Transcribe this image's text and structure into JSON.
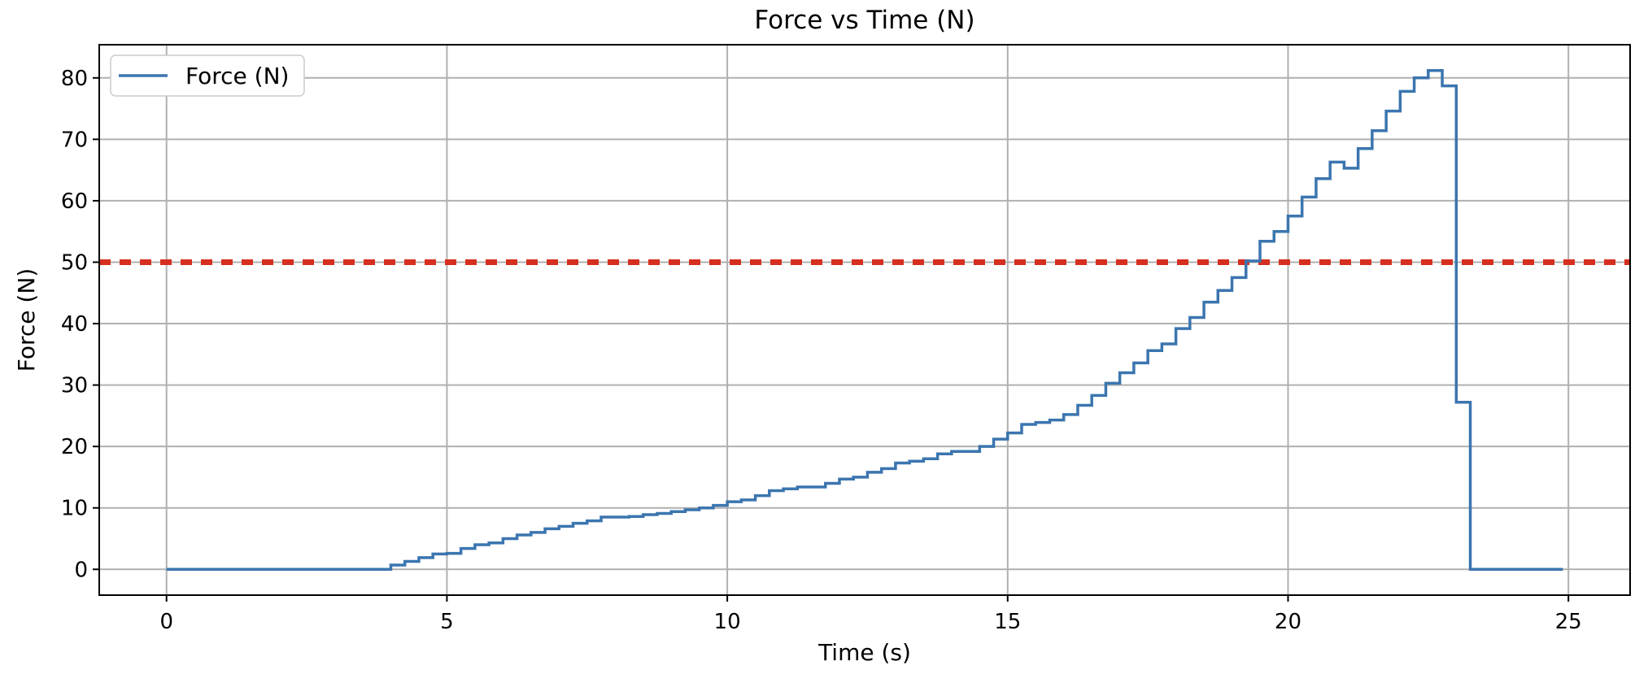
{
  "chart_data": {
    "type": "line",
    "title": "Force vs Time (N)",
    "xlabel": "Time (s)",
    "ylabel": "Force (N)",
    "xlim": [
      -1.2,
      26.1
    ],
    "ylim": [
      -4.2,
      85.4
    ],
    "xticks": [
      0,
      5,
      10,
      15,
      20,
      25
    ],
    "yticks": [
      0,
      10,
      20,
      30,
      40,
      50,
      60,
      70,
      80
    ],
    "grid": true,
    "legend": {
      "position": "top-left",
      "entries": [
        "Force (N)"
      ]
    },
    "threshold": {
      "value": 50,
      "color": "#d62f1f",
      "style": "dashed"
    },
    "series": [
      {
        "name": "Force (N)",
        "color": "#3b75af",
        "step": true,
        "x": [
          0,
          4.0,
          4.25,
          4.5,
          4.75,
          5.0,
          5.25,
          5.5,
          5.75,
          6.0,
          6.25,
          6.5,
          6.75,
          7.0,
          7.25,
          7.5,
          7.75,
          8.0,
          8.25,
          8.5,
          8.75,
          9.0,
          9.25,
          9.5,
          9.75,
          10.0,
          10.25,
          10.5,
          10.75,
          11.0,
          11.25,
          11.5,
          11.75,
          12.0,
          12.25,
          12.5,
          12.75,
          13.0,
          13.25,
          13.5,
          13.75,
          14.0,
          14.25,
          14.5,
          14.75,
          15.0,
          15.25,
          15.5,
          15.75,
          16.0,
          16.25,
          16.5,
          16.75,
          17.0,
          17.25,
          17.5,
          17.75,
          18.0,
          18.25,
          18.5,
          18.75,
          19.0,
          19.25,
          19.5,
          19.75,
          20.0,
          20.25,
          20.5,
          20.75,
          21.0,
          21.25,
          21.5,
          21.75,
          22.0,
          22.25,
          22.5,
          22.75,
          23.0,
          23.25,
          23.5,
          24.9
        ],
        "y": [
          0,
          0.7,
          1.3,
          1.9,
          2.5,
          2.6,
          3.4,
          4.0,
          4.3,
          5.0,
          5.6,
          6.0,
          6.6,
          7.0,
          7.5,
          7.9,
          8.5,
          8.5,
          8.6,
          8.9,
          9.1,
          9.4,
          9.7,
          10.0,
          10.4,
          11.0,
          11.3,
          12.0,
          12.8,
          13.1,
          13.4,
          13.4,
          14.0,
          14.7,
          15.0,
          15.8,
          16.4,
          17.3,
          17.6,
          18.0,
          18.8,
          19.2,
          19.2,
          20.0,
          21.2,
          22.2,
          23.6,
          23.9,
          24.3,
          25.2,
          26.7,
          28.3,
          30.3,
          32.0,
          33.6,
          35.6,
          36.7,
          39.2,
          41.0,
          43.5,
          45.4,
          47.5,
          50.2,
          53.4,
          55.0,
          57.5,
          60.6,
          63.6,
          66.3,
          65.3,
          68.5,
          71.4,
          74.6,
          77.8,
          80.0,
          81.2,
          78.7,
          27.2,
          0,
          0,
          0
        ]
      }
    ]
  }
}
